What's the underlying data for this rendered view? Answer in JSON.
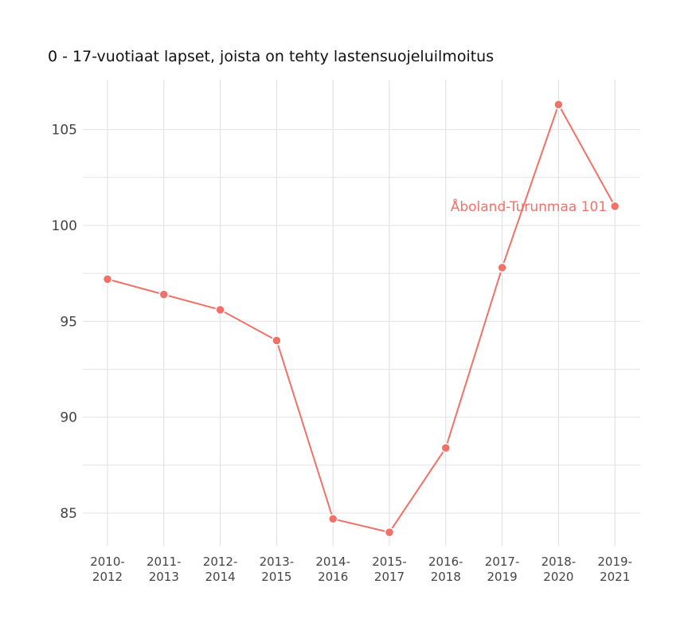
{
  "chart_data": {
    "type": "line",
    "title": "0 - 17-vuotiaat lapset, joista on tehty lastensuojeluilmoitus",
    "xlabel": "",
    "ylabel": "",
    "categories": [
      "2010-2012",
      "2011-2013",
      "2012-2014",
      "2013-2015",
      "2014-2016",
      "2015-2017",
      "2016-2018",
      "2017-2019",
      "2018-2020",
      "2019-2021"
    ],
    "x_tick_labels": [
      [
        "2010-",
        "2012"
      ],
      [
        "2011-",
        "2013"
      ],
      [
        "2012-",
        "2014"
      ],
      [
        "2013-",
        "2015"
      ],
      [
        "2014-",
        "2016"
      ],
      [
        "2015-",
        "2017"
      ],
      [
        "2016-",
        "2018"
      ],
      [
        "2017-",
        "2019"
      ],
      [
        "2018-",
        "2020"
      ],
      [
        "2019-",
        "2021"
      ]
    ],
    "y_ticks": [
      85,
      90,
      95,
      100,
      105
    ],
    "y_minor_gridlines": [
      87.5,
      92.5,
      97.5,
      102.5
    ],
    "ylim": [
      83.3,
      107.6
    ],
    "grid": true,
    "legend": "none",
    "series": [
      {
        "name": "Åboland-Turunmaa",
        "color": "#f07167",
        "values": [
          97.2,
          96.4,
          95.6,
          94.0,
          84.7,
          84.0,
          88.4,
          97.8,
          106.3,
          101.0
        ],
        "end_label": "Åboland-Turunmaa 101"
      }
    ]
  }
}
